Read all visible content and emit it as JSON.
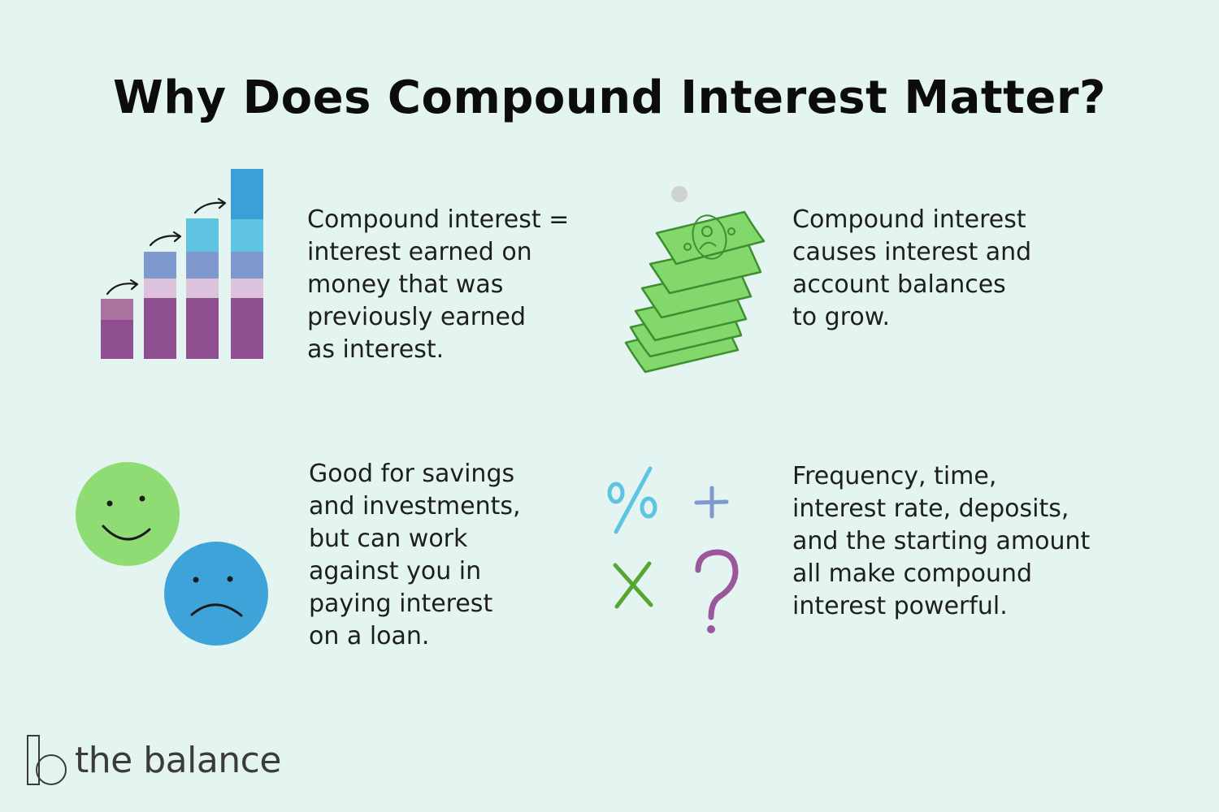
{
  "title": "Why Does Compound Interest Matter?",
  "blocks": [
    {
      "icon": "stacked-bar-growth-icon",
      "lines": [
        "Compound interest =",
        "interest earned on",
        "money that was",
        "previously earned",
        "as interest."
      ]
    },
    {
      "icon": "cash-stack-icon",
      "lines": [
        "Compound interest",
        "causes interest and",
        "account balances",
        "to grow."
      ]
    },
    {
      "icon": "happy-sad-faces-icon",
      "lines": [
        "Good for savings",
        "and investments,",
        "but can work",
        "against you in",
        "paying interest",
        "on a loan."
      ]
    },
    {
      "icon": "math-symbols-icon",
      "lines": [
        "Frequency, time,",
        "interest rate, deposits,",
        "and the starting amount",
        "all make compound",
        "interest powerful."
      ]
    }
  ],
  "brand": {
    "name": "the balance"
  },
  "colors": {
    "background": "#e3f4f1",
    "purple_dark": "#8f4e8f",
    "purple_light": "#dcc2da",
    "blue_mid": "#7f98cd",
    "cyan": "#5ec4e2",
    "blue_dark": "#3aa0d6",
    "money_green": "#82d86a",
    "face_green": "#8fdc74",
    "face_blue": "#3ea3d9",
    "symbol_purple": "#9a579b",
    "symbol_green": "#55a62e"
  }
}
